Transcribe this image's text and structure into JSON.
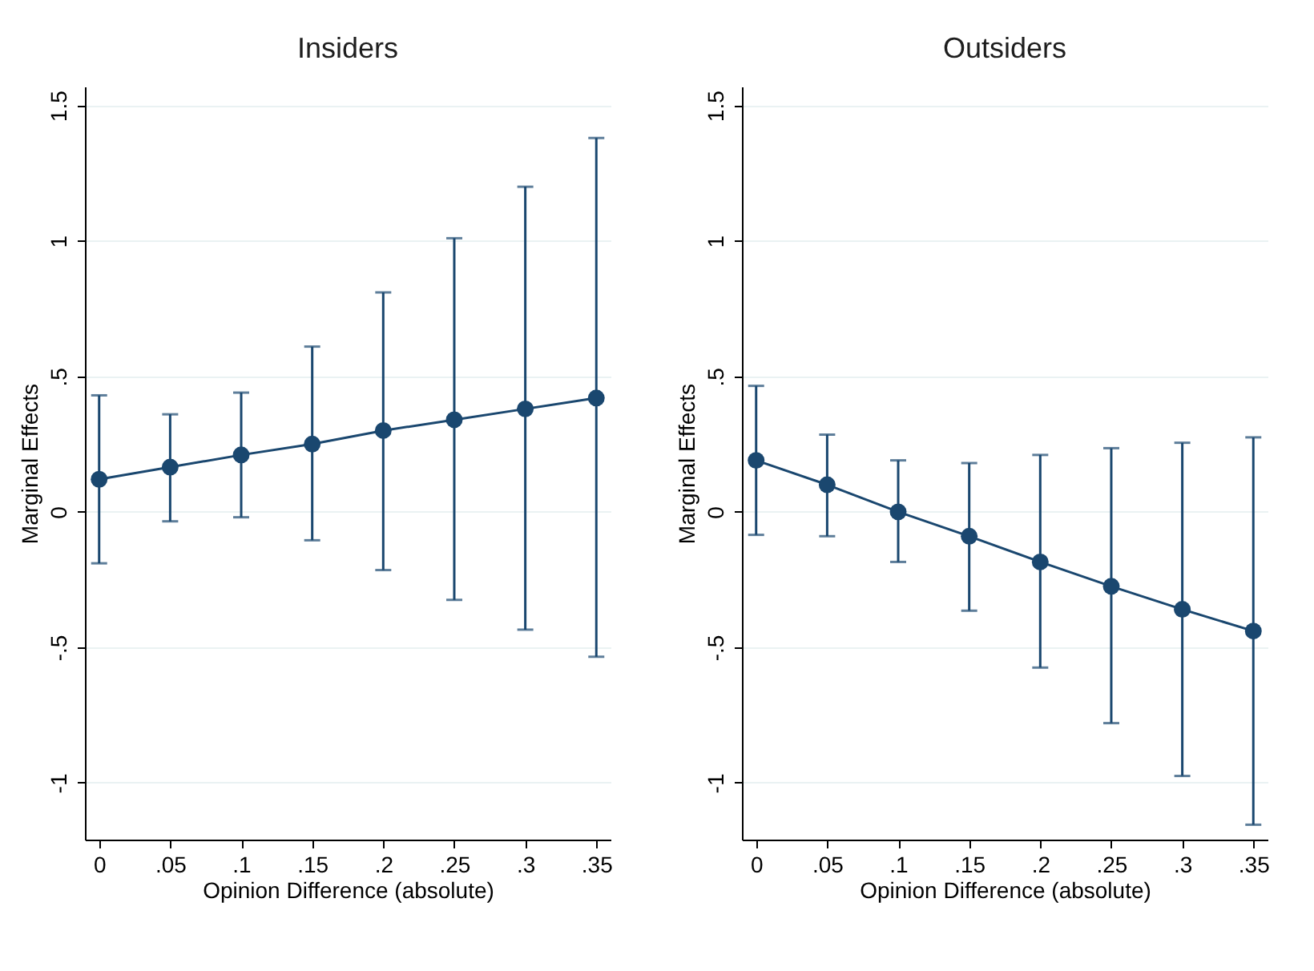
{
  "chart_data": [
    {
      "type": "line",
      "title": "Insiders",
      "xlabel": "Opinion Difference (absolute)",
      "ylabel": "Marginal Effects",
      "x": [
        0,
        0.05,
        0.1,
        0.15,
        0.2,
        0.25,
        0.3,
        0.35
      ],
      "series": [
        {
          "color": "#1a476f",
          "values": [
            0.12,
            0.165,
            0.21,
            0.25,
            0.3,
            0.34,
            0.38,
            0.42
          ],
          "errors": [
            [
              -0.19,
              0.43
            ],
            [
              -0.035,
              0.36
            ],
            [
              -0.02,
              0.44
            ],
            [
              -0.105,
              0.61
            ],
            [
              -0.215,
              0.81
            ],
            [
              -0.325,
              1.01
            ],
            [
              -0.435,
              1.2
            ],
            [
              -0.535,
              1.38
            ]
          ]
        }
      ],
      "xlim": [
        -0.01,
        0.36
      ],
      "xticks": [
        {
          "value": 0,
          "label": "0"
        },
        {
          "value": 0.05,
          "label": ".05"
        },
        {
          "value": 0.1,
          "label": ".1"
        },
        {
          "value": 0.15,
          "label": ".15"
        },
        {
          "value": 0.2,
          "label": ".2"
        },
        {
          "value": 0.25,
          "label": ".25"
        },
        {
          "value": 0.3,
          "label": ".3"
        },
        {
          "value": 0.35,
          "label": ".35"
        }
      ],
      "ylim": [
        -1.21,
        1.57
      ],
      "yticks": [
        {
          "value": -1,
          "label": "-1"
        },
        {
          "value": -0.5,
          "label": "-.5"
        },
        {
          "value": 0,
          "label": "0"
        },
        {
          "value": 0.5,
          "label": ".5"
        },
        {
          "value": 1,
          "label": "1"
        },
        {
          "value": 1.5,
          "label": "1.5"
        }
      ],
      "grid": "y",
      "marker": "circle",
      "line_style": "solid"
    },
    {
      "type": "line",
      "title": "Outsiders",
      "xlabel": "Opinion Difference (absolute)",
      "ylabel": "Marginal Effects",
      "x": [
        0,
        0.05,
        0.1,
        0.15,
        0.2,
        0.25,
        0.3,
        0.35
      ],
      "series": [
        {
          "color": "#1a476f",
          "values": [
            0.19,
            0.1,
            0.0,
            -0.09,
            -0.185,
            -0.275,
            -0.36,
            -0.44
          ],
          "errors": [
            [
              -0.085,
              0.465
            ],
            [
              -0.09,
              0.285
            ],
            [
              -0.185,
              0.19
            ],
            [
              -0.365,
              0.18
            ],
            [
              -0.575,
              0.21
            ],
            [
              -0.78,
              0.235
            ],
            [
              -0.975,
              0.255
            ],
            [
              -1.155,
              0.275
            ]
          ]
        }
      ],
      "xlim": [
        -0.01,
        0.36
      ],
      "xticks": [
        {
          "value": 0,
          "label": "0"
        },
        {
          "value": 0.05,
          "label": ".05"
        },
        {
          "value": 0.1,
          "label": ".1"
        },
        {
          "value": 0.15,
          "label": ".15"
        },
        {
          "value": 0.2,
          "label": ".2"
        },
        {
          "value": 0.25,
          "label": ".25"
        },
        {
          "value": 0.3,
          "label": ".3"
        },
        {
          "value": 0.35,
          "label": ".35"
        }
      ],
      "ylim": [
        -1.21,
        1.57
      ],
      "yticks": [
        {
          "value": -1,
          "label": "-1"
        },
        {
          "value": -0.5,
          "label": "-.5"
        },
        {
          "value": 0,
          "label": "0"
        },
        {
          "value": 0.5,
          "label": ".5"
        },
        {
          "value": 1,
          "label": "1"
        },
        {
          "value": 1.5,
          "label": "1.5"
        }
      ],
      "grid": "y",
      "marker": "circle",
      "line_style": "solid"
    }
  ]
}
